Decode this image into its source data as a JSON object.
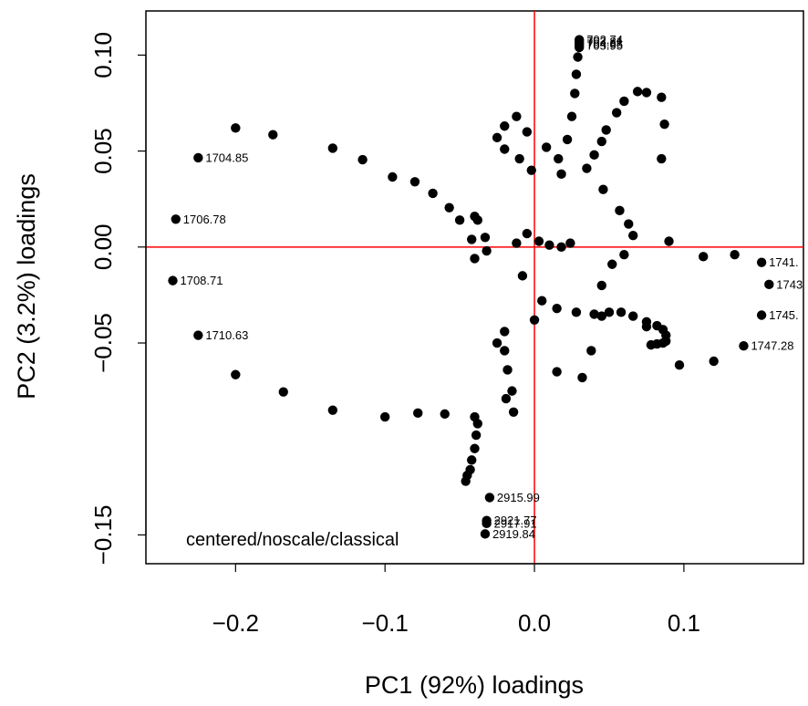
{
  "chart_data": {
    "type": "scatter",
    "title": "",
    "xlabel": "PC1 (92%) loadings",
    "ylabel": "PC2 (3.2%) loadings",
    "xlim": [
      -0.26,
      0.18
    ],
    "ylim": [
      -0.165,
      0.123
    ],
    "x_ticks": [
      -0.2,
      -0.1,
      0.0,
      0.1
    ],
    "x_tick_labels": [
      "−0.2",
      "−0.1",
      "0.0",
      "0.1"
    ],
    "y_ticks": [
      -0.15,
      -0.05,
      0.0,
      0.05,
      0.1
    ],
    "y_tick_labels": [
      "−0.15",
      "−0.05",
      "0.00",
      "0.05",
      "0.10"
    ],
    "grid": false,
    "reference_lines": {
      "x": 0,
      "y": 0,
      "color": "#ff0000"
    },
    "annotation": "centered/noscale/classical",
    "point_color": "#000000",
    "labeled_points": [
      {
        "label": "1704.85",
        "x": -0.225,
        "y": 0.0465
      },
      {
        "label": "1706.78",
        "x": -0.24,
        "y": 0.0145
      },
      {
        "label": "1708.71",
        "x": -0.242,
        "y": -0.0175
      },
      {
        "label": "1710.63",
        "x": -0.225,
        "y": -0.046
      },
      {
        "label": "1741.",
        "x": 0.152,
        "y": -0.008
      },
      {
        "label": "1743",
        "x": 0.157,
        "y": -0.0195
      },
      {
        "label": "1745.",
        "x": 0.152,
        "y": -0.0355
      },
      {
        "label": "1747.28",
        "x": 0.14,
        "y": -0.0515
      },
      {
        "label": "2915.99",
        "x": -0.03,
        "y": -0.1305
      },
      {
        "label": "2921.77",
        "x": -0.032,
        "y": -0.1425
      },
      {
        "label": "2917.91",
        "x": -0.032,
        "y": -0.144
      },
      {
        "label": "2919.84",
        "x": -0.033,
        "y": -0.1495
      },
      {
        "label": "702.74",
        "x": 0.03,
        "y": 0.108
      },
      {
        "label": "703.81",
        "x": 0.03,
        "y": 0.107
      },
      {
        "label": "704.88",
        "x": 0.03,
        "y": 0.106
      },
      {
        "label": "705.95",
        "x": 0.03,
        "y": 0.105
      }
    ],
    "series": [
      {
        "points": [
          [
            -0.2,
            0.062
          ],
          [
            -0.175,
            0.0585
          ],
          [
            -0.135,
            0.0515
          ],
          [
            -0.115,
            0.0455
          ],
          [
            -0.095,
            0.0365
          ],
          [
            -0.08,
            0.034
          ],
          [
            -0.068,
            0.028
          ],
          [
            -0.057,
            0.0205
          ],
          [
            -0.05,
            0.014
          ],
          [
            -0.04,
            0.016
          ],
          [
            -0.038,
            0.014
          ],
          [
            -0.042,
            0.004
          ],
          [
            -0.033,
            0.005
          ],
          [
            -0.032,
            -0.002
          ],
          [
            -0.04,
            -0.006
          ],
          [
            -0.2,
            -0.0665
          ],
          [
            -0.168,
            -0.0755
          ],
          [
            -0.135,
            -0.085
          ],
          [
            -0.1,
            -0.0885
          ],
          [
            -0.078,
            -0.0865
          ],
          [
            -0.06,
            -0.087
          ],
          [
            -0.04,
            -0.0885
          ],
          [
            0.113,
            -0.005
          ],
          [
            0.134,
            -0.004
          ],
          [
            0.12,
            -0.0595
          ],
          [
            0.097,
            -0.0615
          ],
          [
            0.075,
            -0.0415
          ],
          [
            0.09,
            0.003
          ],
          [
            0.085,
            0.046
          ],
          [
            0.087,
            0.064
          ],
          [
            0.085,
            0.078
          ],
          [
            0.075,
            0.0805
          ],
          [
            0.069,
            0.081
          ],
          [
            0.06,
            0.076
          ],
          [
            0.055,
            0.07
          ],
          [
            0.048,
            0.061
          ],
          [
            0.045,
            0.055
          ],
          [
            0.04,
            0.048
          ],
          [
            0.035,
            0.041
          ],
          [
            0.046,
            0.03
          ],
          [
            0.057,
            0.019
          ],
          [
            0.063,
            0.012
          ],
          [
            0.066,
            0.006
          ],
          [
            0.06,
            -0.004
          ],
          [
            0.052,
            -0.009
          ],
          [
            0.045,
            -0.02
          ],
          [
            0.045,
            -0.036
          ],
          [
            0.038,
            -0.054
          ],
          [
            0.032,
            -0.068
          ],
          [
            0.015,
            -0.065
          ],
          [
            0.0,
            -0.038
          ],
          [
            -0.02,
            -0.044
          ],
          [
            -0.025,
            -0.05
          ],
          [
            -0.02,
            -0.054
          ],
          [
            -0.018,
            -0.064
          ],
          [
            -0.015,
            -0.075
          ],
          [
            -0.019,
            -0.079
          ],
          [
            -0.014,
            -0.086
          ],
          [
            -0.038,
            -0.092
          ],
          [
            -0.039,
            -0.098
          ],
          [
            -0.04,
            -0.105
          ],
          [
            -0.042,
            -0.111
          ],
          [
            -0.043,
            -0.116
          ],
          [
            -0.045,
            -0.119
          ],
          [
            -0.046,
            -0.122
          ],
          [
            -0.012,
            0.002
          ],
          [
            -0.005,
            0.007
          ],
          [
            0.003,
            0.003
          ],
          [
            0.01,
            0.001
          ],
          [
            0.018,
            0.0
          ],
          [
            0.024,
            0.002
          ],
          [
            -0.008,
            -0.015
          ],
          [
            0.005,
            -0.028
          ],
          [
            0.015,
            -0.032
          ],
          [
            0.028,
            -0.034
          ],
          [
            0.04,
            -0.035
          ],
          [
            0.05,
            -0.034
          ],
          [
            0.058,
            -0.034
          ],
          [
            0.066,
            -0.036
          ],
          [
            0.075,
            -0.039
          ],
          [
            0.082,
            -0.041
          ],
          [
            0.086,
            -0.043
          ],
          [
            0.088,
            -0.046
          ],
          [
            0.088,
            -0.049
          ],
          [
            0.086,
            -0.05
          ],
          [
            0.082,
            -0.0505
          ],
          [
            0.078,
            -0.051
          ],
          [
            -0.002,
            0.04
          ],
          [
            -0.01,
            0.046
          ],
          [
            -0.02,
            0.051
          ],
          [
            -0.025,
            0.057
          ],
          [
            -0.02,
            0.063
          ],
          [
            -0.012,
            0.068
          ],
          [
            -0.005,
            0.06
          ],
          [
            0.008,
            0.052
          ],
          [
            0.016,
            0.046
          ],
          [
            0.018,
            0.038
          ],
          [
            0.022,
            0.056
          ],
          [
            0.025,
            0.068
          ],
          [
            0.027,
            0.08
          ],
          [
            0.028,
            0.09
          ],
          [
            0.029,
            0.099
          ],
          [
            0.03,
            0.104
          ]
        ]
      }
    ]
  }
}
